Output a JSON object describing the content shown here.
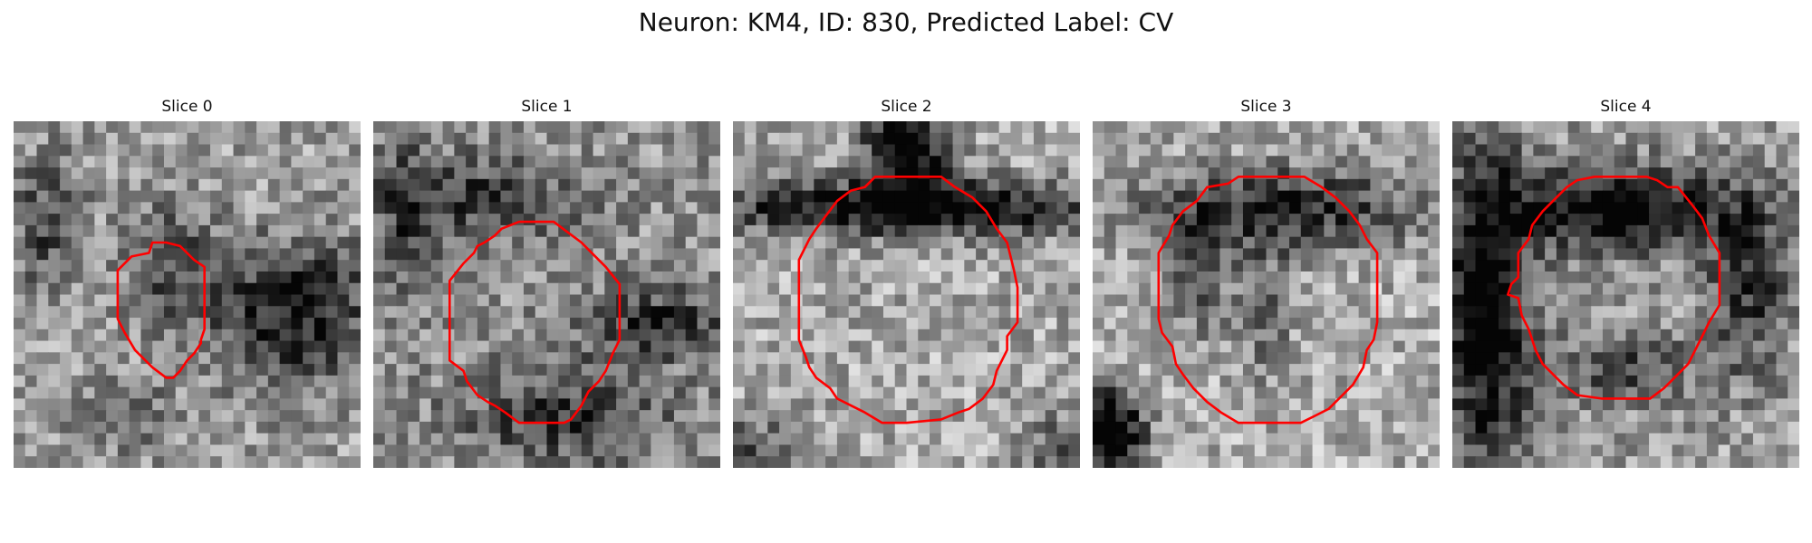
{
  "figure": {
    "title": "Neuron: KM4, ID: 830, Predicted Label: CV",
    "contour_color": "#ff0000",
    "colormap": "grayscale"
  },
  "panels": [
    {
      "title": "Slice 0",
      "seed": 11,
      "mean": 0.62,
      "dark": [
        [
          0.1,
          0.3,
          0.1,
          0.2,
          0.35
        ],
        [
          0.45,
          0.4,
          0.12,
          0.18,
          0.3
        ],
        [
          0.8,
          0.55,
          0.25,
          0.2,
          0.55
        ],
        [
          0.3,
          0.85,
          0.15,
          0.1,
          0.25
        ]
      ],
      "contour": [
        [
          0.3,
          0.43
        ],
        [
          0.34,
          0.39
        ],
        [
          0.39,
          0.38
        ],
        [
          0.4,
          0.35
        ],
        [
          0.44,
          0.35
        ],
        [
          0.48,
          0.36
        ],
        [
          0.5,
          0.38
        ],
        [
          0.52,
          0.4
        ],
        [
          0.55,
          0.42
        ],
        [
          0.55,
          0.6
        ],
        [
          0.54,
          0.63
        ],
        [
          0.54,
          0.64
        ],
        [
          0.52,
          0.67
        ],
        [
          0.5,
          0.69
        ],
        [
          0.48,
          0.72
        ],
        [
          0.46,
          0.74
        ],
        [
          0.44,
          0.74
        ],
        [
          0.4,
          0.71
        ],
        [
          0.35,
          0.66
        ],
        [
          0.32,
          0.61
        ],
        [
          0.3,
          0.57
        ]
      ]
    },
    {
      "title": "Slice 1",
      "seed": 23,
      "mean": 0.58,
      "dark": [
        [
          0.3,
          0.22,
          0.3,
          0.12,
          0.35
        ],
        [
          0.82,
          0.58,
          0.22,
          0.1,
          0.4
        ],
        [
          0.55,
          0.85,
          0.3,
          0.15,
          0.35
        ],
        [
          0.1,
          0.3,
          0.08,
          0.25,
          0.25
        ]
      ],
      "contour": [
        [
          0.22,
          0.46
        ],
        [
          0.26,
          0.41
        ],
        [
          0.29,
          0.38
        ],
        [
          0.3,
          0.36
        ],
        [
          0.32,
          0.35
        ],
        [
          0.35,
          0.33
        ],
        [
          0.37,
          0.31
        ],
        [
          0.42,
          0.29
        ],
        [
          0.52,
          0.29
        ],
        [
          0.56,
          0.32
        ],
        [
          0.6,
          0.35
        ],
        [
          0.64,
          0.39
        ],
        [
          0.67,
          0.42
        ],
        [
          0.71,
          0.47
        ],
        [
          0.71,
          0.63
        ],
        [
          0.69,
          0.67
        ],
        [
          0.67,
          0.72
        ],
        [
          0.65,
          0.75
        ],
        [
          0.62,
          0.78
        ],
        [
          0.6,
          0.82
        ],
        [
          0.57,
          0.86
        ],
        [
          0.55,
          0.87
        ],
        [
          0.52,
          0.87
        ],
        [
          0.42,
          0.87
        ],
        [
          0.38,
          0.84
        ],
        [
          0.35,
          0.82
        ],
        [
          0.33,
          0.81
        ],
        [
          0.3,
          0.79
        ],
        [
          0.27,
          0.75
        ],
        [
          0.26,
          0.72
        ],
        [
          0.22,
          0.69
        ]
      ]
    },
    {
      "title": "Slice 2",
      "seed": 37,
      "mean": 0.66,
      "dark": [
        [
          0.5,
          0.08,
          0.12,
          0.12,
          0.8
        ],
        [
          0.5,
          0.25,
          0.6,
          0.08,
          0.7
        ],
        [
          0.05,
          0.95,
          0.15,
          0.1,
          0.3
        ],
        [
          0.95,
          0.95,
          0.12,
          0.12,
          0.3
        ]
      ],
      "contour": [
        [
          0.19,
          0.4
        ],
        [
          0.22,
          0.34
        ],
        [
          0.24,
          0.31
        ],
        [
          0.27,
          0.27
        ],
        [
          0.3,
          0.23
        ],
        [
          0.34,
          0.2
        ],
        [
          0.38,
          0.19
        ],
        [
          0.41,
          0.16
        ],
        [
          0.47,
          0.16
        ],
        [
          0.6,
          0.16
        ],
        [
          0.64,
          0.19
        ],
        [
          0.69,
          0.22
        ],
        [
          0.73,
          0.26
        ],
        [
          0.76,
          0.31
        ],
        [
          0.79,
          0.35
        ],
        [
          0.81,
          0.43
        ],
        [
          0.82,
          0.48
        ],
        [
          0.82,
          0.58
        ],
        [
          0.79,
          0.62
        ],
        [
          0.79,
          0.66
        ],
        [
          0.76,
          0.72
        ],
        [
          0.75,
          0.76
        ],
        [
          0.72,
          0.8
        ],
        [
          0.68,
          0.83
        ],
        [
          0.65,
          0.84
        ],
        [
          0.6,
          0.86
        ],
        [
          0.5,
          0.87
        ],
        [
          0.43,
          0.87
        ],
        [
          0.38,
          0.84
        ],
        [
          0.34,
          0.82
        ],
        [
          0.3,
          0.8
        ],
        [
          0.28,
          0.77
        ],
        [
          0.24,
          0.74
        ],
        [
          0.22,
          0.71
        ],
        [
          0.21,
          0.68
        ],
        [
          0.19,
          0.63
        ]
      ]
    },
    {
      "title": "Slice 3",
      "seed": 53,
      "mean": 0.68,
      "dark": [
        [
          0.55,
          0.25,
          0.4,
          0.12,
          0.55
        ],
        [
          0.05,
          0.9,
          0.1,
          0.12,
          0.9
        ],
        [
          0.3,
          0.45,
          0.1,
          0.18,
          0.3
        ],
        [
          0.5,
          0.55,
          0.08,
          0.22,
          0.25
        ]
      ],
      "contour": [
        [
          0.19,
          0.38
        ],
        [
          0.22,
          0.33
        ],
        [
          0.23,
          0.3
        ],
        [
          0.26,
          0.26
        ],
        [
          0.3,
          0.23
        ],
        [
          0.33,
          0.19
        ],
        [
          0.39,
          0.18
        ],
        [
          0.42,
          0.16
        ],
        [
          0.49,
          0.16
        ],
        [
          0.61,
          0.16
        ],
        [
          0.66,
          0.19
        ],
        [
          0.7,
          0.22
        ],
        [
          0.74,
          0.26
        ],
        [
          0.77,
          0.3
        ],
        [
          0.79,
          0.34
        ],
        [
          0.82,
          0.38
        ],
        [
          0.82,
          0.5
        ],
        [
          0.82,
          0.58
        ],
        [
          0.81,
          0.63
        ],
        [
          0.79,
          0.66
        ],
        [
          0.78,
          0.71
        ],
        [
          0.75,
          0.76
        ],
        [
          0.72,
          0.79
        ],
        [
          0.68,
          0.83
        ],
        [
          0.64,
          0.85
        ],
        [
          0.6,
          0.87
        ],
        [
          0.5,
          0.87
        ],
        [
          0.42,
          0.87
        ],
        [
          0.37,
          0.84
        ],
        [
          0.33,
          0.81
        ],
        [
          0.29,
          0.77
        ],
        [
          0.26,
          0.73
        ],
        [
          0.24,
          0.7
        ],
        [
          0.23,
          0.65
        ],
        [
          0.2,
          0.61
        ],
        [
          0.19,
          0.57
        ]
      ]
    },
    {
      "title": "Slice 4",
      "seed": 71,
      "mean": 0.62,
      "dark": [
        [
          0.1,
          0.55,
          0.12,
          0.45,
          0.75
        ],
        [
          0.48,
          0.25,
          0.3,
          0.12,
          0.7
        ],
        [
          0.85,
          0.45,
          0.12,
          0.25,
          0.45
        ],
        [
          0.5,
          0.72,
          0.22,
          0.1,
          0.35
        ]
      ],
      "contour": [
        [
          0.19,
          0.38
        ],
        [
          0.22,
          0.34
        ],
        [
          0.23,
          0.3
        ],
        [
          0.26,
          0.26
        ],
        [
          0.29,
          0.23
        ],
        [
          0.33,
          0.19
        ],
        [
          0.36,
          0.17
        ],
        [
          0.41,
          0.16
        ],
        [
          0.47,
          0.16
        ],
        [
          0.56,
          0.16
        ],
        [
          0.59,
          0.17
        ],
        [
          0.62,
          0.19
        ],
        [
          0.65,
          0.19
        ],
        [
          0.69,
          0.24
        ],
        [
          0.72,
          0.28
        ],
        [
          0.74,
          0.33
        ],
        [
          0.77,
          0.38
        ],
        [
          0.77,
          0.48
        ],
        [
          0.77,
          0.53
        ],
        [
          0.74,
          0.58
        ],
        [
          0.72,
          0.62
        ],
        [
          0.7,
          0.66
        ],
        [
          0.68,
          0.7
        ],
        [
          0.65,
          0.73
        ],
        [
          0.61,
          0.77
        ],
        [
          0.57,
          0.8
        ],
        [
          0.5,
          0.8
        ],
        [
          0.43,
          0.8
        ],
        [
          0.36,
          0.79
        ],
        [
          0.32,
          0.76
        ],
        [
          0.29,
          0.73
        ],
        [
          0.26,
          0.7
        ],
        [
          0.24,
          0.66
        ],
        [
          0.22,
          0.6
        ],
        [
          0.2,
          0.56
        ],
        [
          0.19,
          0.51
        ],
        [
          0.16,
          0.5
        ],
        [
          0.17,
          0.47
        ],
        [
          0.19,
          0.45
        ]
      ]
    }
  ]
}
